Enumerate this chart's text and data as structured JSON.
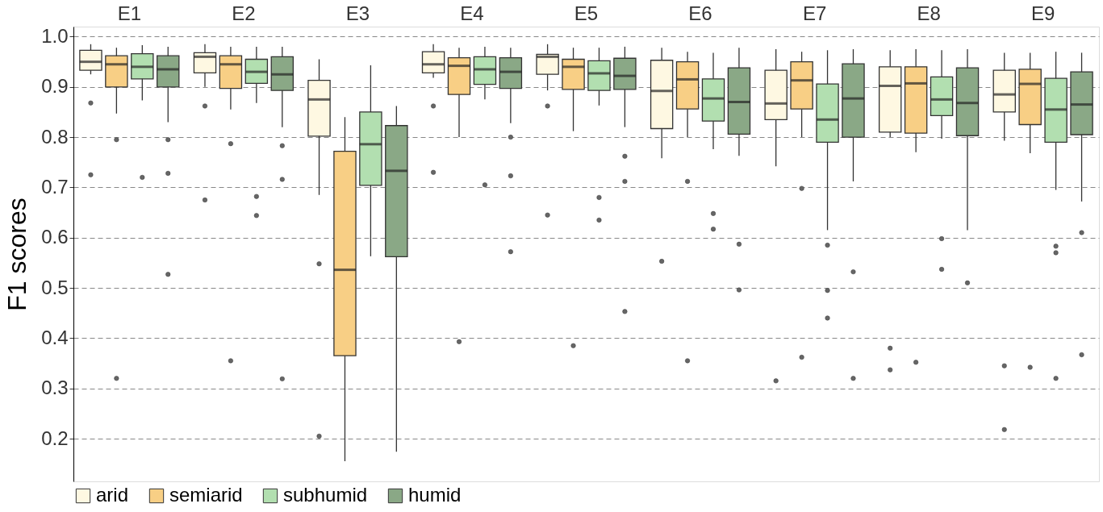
{
  "chart_data": {
    "type": "box",
    "ylabel": "F1 scores",
    "categories": [
      "E1",
      "E2",
      "E3",
      "E4",
      "E5",
      "E6",
      "E7",
      "E8",
      "E9"
    ],
    "ylim": [
      0.115,
      1.02
    ],
    "yticks": [
      0.2,
      0.3,
      0.4,
      0.5,
      0.6,
      0.7,
      0.8,
      0.9,
      {
        "value": 1,
        "label": "1.0"
      }
    ],
    "grid": "y",
    "legend": "bottom",
    "series": [
      {
        "name": "arid",
        "color": "#fef8e2",
        "boxes": [
          {
            "low": 0.925,
            "q1": 0.933,
            "median": 0.95,
            "q3": 0.973,
            "high": 0.985,
            "outliers": [
              0.868,
              0.725
            ]
          },
          {
            "low": 0.9,
            "q1": 0.928,
            "median": 0.96,
            "q3": 0.968,
            "high": 0.985,
            "outliers": [
              0.862,
              0.675
            ]
          },
          {
            "low": 0.685,
            "q1": 0.802,
            "median": 0.875,
            "q3": 0.913,
            "high": 0.955,
            "outliers": [
              0.548,
              0.205
            ]
          },
          {
            "low": 0.918,
            "q1": 0.928,
            "median": 0.945,
            "q3": 0.97,
            "high": 0.985,
            "outliers": [
              0.862,
              0.73
            ]
          },
          {
            "low": 0.893,
            "q1": 0.925,
            "median": 0.96,
            "q3": 0.965,
            "high": 0.985,
            "outliers": [
              0.862,
              0.645
            ]
          },
          {
            "low": 0.758,
            "q1": 0.817,
            "median": 0.892,
            "q3": 0.953,
            "high": 0.978,
            "outliers": [
              0.553
            ]
          },
          {
            "low": 0.742,
            "q1": 0.835,
            "median": 0.867,
            "q3": 0.933,
            "high": 0.975,
            "outliers": [
              0.315
            ]
          },
          {
            "low": 0.8,
            "q1": 0.81,
            "median": 0.902,
            "q3": 0.94,
            "high": 0.973,
            "outliers": [
              0.38,
              0.337
            ]
          },
          {
            "low": 0.793,
            "q1": 0.85,
            "median": 0.885,
            "q3": 0.933,
            "high": 0.968,
            "outliers": [
              0.345,
              0.218
            ]
          }
        ]
      },
      {
        "name": "semiarid",
        "color": "#f8cf85",
        "boxes": [
          {
            "low": 0.847,
            "q1": 0.9,
            "median": 0.945,
            "q3": 0.962,
            "high": 0.978,
            "outliers": [
              0.795,
              0.32
            ]
          },
          {
            "low": 0.855,
            "q1": 0.897,
            "median": 0.945,
            "q3": 0.962,
            "high": 0.98,
            "outliers": [
              0.787,
              0.355
            ]
          },
          {
            "low": 0.155,
            "q1": 0.365,
            "median": 0.536,
            "q3": 0.772,
            "high": 0.84
          },
          {
            "low": 0.8,
            "q1": 0.885,
            "median": 0.942,
            "q3": 0.958,
            "high": 0.978,
            "outliers": [
              0.393
            ]
          },
          {
            "low": 0.812,
            "q1": 0.895,
            "median": 0.94,
            "q3": 0.955,
            "high": 0.978,
            "outliers": [
              0.385
            ]
          },
          {
            "low": 0.8,
            "q1": 0.856,
            "median": 0.915,
            "q3": 0.95,
            "high": 0.97,
            "outliers": [
              0.712,
              0.355
            ]
          },
          {
            "low": 0.8,
            "q1": 0.856,
            "median": 0.913,
            "q3": 0.95,
            "high": 0.97,
            "outliers": [
              0.698,
              0.362
            ]
          },
          {
            "low": 0.77,
            "q1": 0.808,
            "median": 0.907,
            "q3": 0.94,
            "high": 0.975,
            "outliers": [
              0.352
            ]
          },
          {
            "low": 0.768,
            "q1": 0.825,
            "median": 0.906,
            "q3": 0.935,
            "high": 0.968,
            "outliers": [
              0.342
            ]
          }
        ]
      },
      {
        "name": "subhumid",
        "color": "#b2dfb0",
        "boxes": [
          {
            "low": 0.873,
            "q1": 0.916,
            "median": 0.94,
            "q3": 0.966,
            "high": 0.983,
            "outliers": [
              0.72
            ]
          },
          {
            "low": 0.868,
            "q1": 0.907,
            "median": 0.93,
            "q3": 0.955,
            "high": 0.98,
            "outliers": [
              0.682,
              0.644
            ]
          },
          {
            "low": 0.563,
            "q1": 0.704,
            "median": 0.786,
            "q3": 0.85,
            "high": 0.943
          },
          {
            "low": 0.875,
            "q1": 0.905,
            "median": 0.935,
            "q3": 0.96,
            "high": 0.98,
            "outliers": [
              0.705
            ]
          },
          {
            "low": 0.863,
            "q1": 0.893,
            "median": 0.927,
            "q3": 0.952,
            "high": 0.978,
            "outliers": [
              0.68,
              0.635
            ]
          },
          {
            "low": 0.776,
            "q1": 0.832,
            "median": 0.877,
            "q3": 0.916,
            "high": 0.968,
            "outliers": [
              0.648,
              0.617
            ]
          },
          {
            "low": 0.615,
            "q1": 0.79,
            "median": 0.835,
            "q3": 0.906,
            "high": 0.973,
            "outliers": [
              0.585,
              0.495,
              0.44
            ]
          },
          {
            "low": 0.797,
            "q1": 0.843,
            "median": 0.875,
            "q3": 0.92,
            "high": 0.973,
            "outliers": [
              0.598,
              0.537
            ]
          },
          {
            "low": 0.695,
            "q1": 0.79,
            "median": 0.855,
            "q3": 0.917,
            "high": 0.97,
            "outliers": [
              0.583,
              0.57,
              0.32
            ]
          }
        ]
      },
      {
        "name": "humid",
        "color": "#8aa886",
        "boxes": [
          {
            "low": 0.83,
            "q1": 0.9,
            "median": 0.935,
            "q3": 0.962,
            "high": 0.98,
            "outliers": [
              0.795,
              0.728,
              0.527
            ]
          },
          {
            "low": 0.82,
            "q1": 0.893,
            "median": 0.925,
            "q3": 0.96,
            "high": 0.98,
            "outliers": [
              0.783,
              0.716,
              0.319
            ]
          },
          {
            "low": 0.174,
            "q1": 0.562,
            "median": 0.733,
            "q3": 0.823,
            "high": 0.862
          },
          {
            "low": 0.828,
            "q1": 0.897,
            "median": 0.93,
            "q3": 0.958,
            "high": 0.978,
            "outliers": [
              0.8,
              0.723,
              0.572
            ]
          },
          {
            "low": 0.82,
            "q1": 0.895,
            "median": 0.922,
            "q3": 0.957,
            "high": 0.98,
            "outliers": [
              0.762,
              0.712,
              0.453
            ]
          },
          {
            "low": 0.763,
            "q1": 0.806,
            "median": 0.87,
            "q3": 0.938,
            "high": 0.978,
            "outliers": [
              0.587,
              0.496
            ]
          },
          {
            "low": 0.712,
            "q1": 0.8,
            "median": 0.877,
            "q3": 0.946,
            "high": 0.975,
            "outliers": [
              0.532,
              0.32
            ]
          },
          {
            "low": 0.615,
            "q1": 0.803,
            "median": 0.868,
            "q3": 0.938,
            "high": 0.975,
            "outliers": [
              0.51
            ]
          },
          {
            "low": 0.672,
            "q1": 0.805,
            "median": 0.865,
            "q3": 0.93,
            "high": 0.968,
            "outliers": [
              0.61,
              0.367
            ]
          }
        ]
      }
    ]
  }
}
